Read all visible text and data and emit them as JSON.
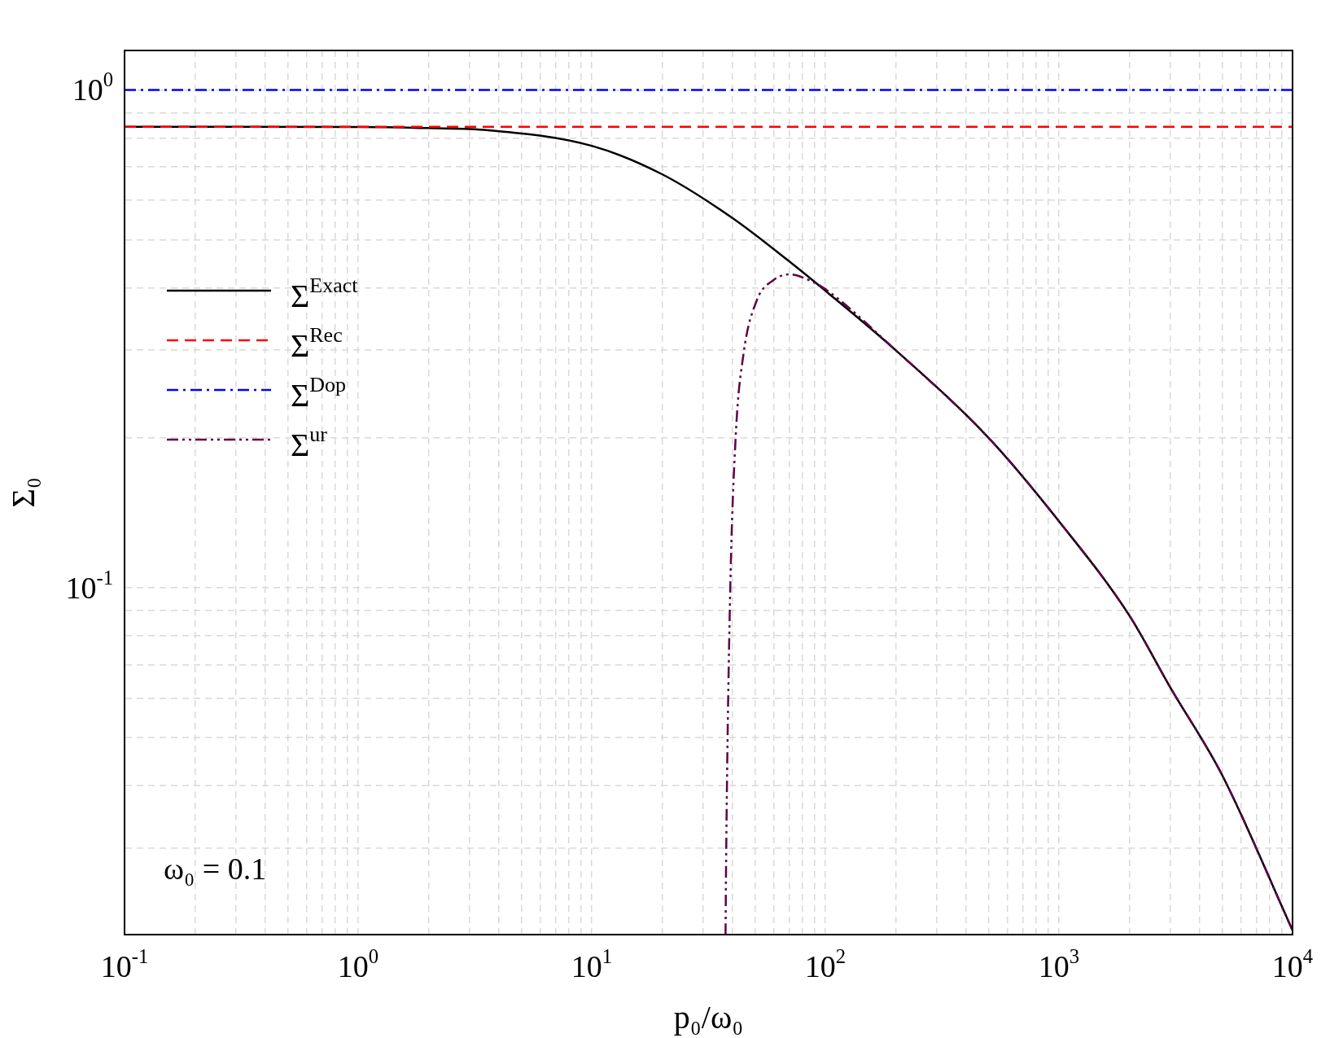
{
  "chart_data": {
    "type": "line",
    "xlabel": "p₀/ω₀",
    "ylabel": "Σ₀",
    "log": "xy",
    "grid": true,
    "legend": "left",
    "marker": "none",
    "xlim": [
      0.1,
      10000
    ],
    "ylim": [
      0.0201,
      1.2
    ],
    "xticks": [
      {
        "value": 0.1,
        "label": "10$^{-1}$"
      },
      {
        "value": 0.2,
        "label": null
      },
      {
        "value": 0.3,
        "label": null
      },
      {
        "value": 0.4,
        "label": null
      },
      {
        "value": 0.5,
        "label": null
      },
      {
        "value": 0.6,
        "label": null
      },
      {
        "value": 0.7,
        "label": null
      },
      {
        "value": 0.8,
        "label": null
      },
      {
        "value": 0.9,
        "label": null
      },
      {
        "value": 1,
        "label": "10$^{0}$"
      },
      {
        "value": 2,
        "label": null
      },
      {
        "value": 3,
        "label": null
      },
      {
        "value": 4,
        "label": null
      },
      {
        "value": 5,
        "label": null
      },
      {
        "value": 6,
        "label": null
      },
      {
        "value": 7,
        "label": null
      },
      {
        "value": 8,
        "label": null
      },
      {
        "value": 9,
        "label": null
      },
      {
        "value": 10,
        "label": "10$^{1}$"
      },
      {
        "value": 20,
        "label": null
      },
      {
        "value": 30,
        "label": null
      },
      {
        "value": 40,
        "label": null
      },
      {
        "value": 50,
        "label": null
      },
      {
        "value": 60,
        "label": null
      },
      {
        "value": 70,
        "label": null
      },
      {
        "value": 80,
        "label": null
      },
      {
        "value": 90,
        "label": null
      },
      {
        "value": 100,
        "label": "10$^{2}$"
      },
      {
        "value": 200,
        "label": null
      },
      {
        "value": 300,
        "label": null
      },
      {
        "value": 400,
        "label": null
      },
      {
        "value": 500,
        "label": null
      },
      {
        "value": 600,
        "label": null
      },
      {
        "value": 700,
        "label": null
      },
      {
        "value": 800,
        "label": null
      },
      {
        "value": 900,
        "label": null
      },
      {
        "value": 1000,
        "label": "10$^{3}$"
      },
      {
        "value": 2000,
        "label": null
      },
      {
        "value": 3000,
        "label": null
      },
      {
        "value": 4000,
        "label": null
      },
      {
        "value": 5000,
        "label": null
      },
      {
        "value": 6000,
        "label": null
      },
      {
        "value": 7000,
        "label": null
      },
      {
        "value": 8000,
        "label": null
      },
      {
        "value": 9000,
        "label": null
      },
      {
        "value": 10000,
        "label": "10$^{4}$"
      }
    ],
    "yticks": [
      {
        "value": 0.03,
        "label": null
      },
      {
        "value": 0.04,
        "label": null
      },
      {
        "value": 0.05,
        "label": null
      },
      {
        "value": 0.06,
        "label": null
      },
      {
        "value": 0.07,
        "label": null
      },
      {
        "value": 0.08,
        "label": null
      },
      {
        "value": 0.09,
        "label": null
      },
      {
        "value": 0.1,
        "label": "10$^{-1}$"
      },
      {
        "value": 0.2,
        "label": null
      },
      {
        "value": 0.3,
        "label": null
      },
      {
        "value": 0.4,
        "label": null
      },
      {
        "value": 0.5,
        "label": null
      },
      {
        "value": 0.6,
        "label": null
      },
      {
        "value": 0.7,
        "label": null
      },
      {
        "value": 0.8,
        "label": null
      },
      {
        "value": 0.9,
        "label": null
      },
      {
        "value": 1,
        "label": "10$^{0}$"
      }
    ],
    "series": [
      {
        "name": "Σ$^{Exact}$",
        "color": "#000000",
        "line_style": "solid",
        "x": [
          0.1,
          1,
          2,
          3.6,
          10,
          20,
          40,
          69,
          100,
          200,
          500,
          1000,
          2000,
          3000,
          5000,
          10000
        ],
        "values": [
          0.843,
          0.842,
          0.838,
          0.83,
          0.772,
          0.677,
          0.553,
          0.455,
          0.395,
          0.3,
          0.2,
          0.136,
          0.088,
          0.063,
          0.042,
          0.0205
        ]
      },
      {
        "name": "Σ$^{Rec}$",
        "color": "#ff0000",
        "line_style": "dashed",
        "x": [
          0.1,
          10000
        ],
        "values": [
          0.843,
          0.843
        ]
      },
      {
        "name": "Σ$^{Dop}$",
        "color": "#0000ff",
        "line_style": "dashdot",
        "x": [
          0.1,
          10000
        ],
        "values": [
          1,
          1
        ]
      },
      {
        "name": "Σ$^{ur}$",
        "color": "#600048",
        "line_style": "dashdotdot",
        "x": [
          37.4,
          37.6,
          39.1,
          41.3,
          44.6,
          50.8,
          60,
          70.3,
          85,
          100,
          200,
          500,
          1000,
          2000,
          3000,
          5000,
          10000
        ],
        "values": [
          0.0201,
          0.028,
          0.0955,
          0.2,
          0.294,
          0.377,
          0.415,
          0.426,
          0.415,
          0.398,
          0.3,
          0.2,
          0.136,
          0.088,
          0.063,
          0.042,
          0.0205
        ]
      }
    ],
    "annotations": [
      "ω₀ = 0.1"
    ]
  }
}
